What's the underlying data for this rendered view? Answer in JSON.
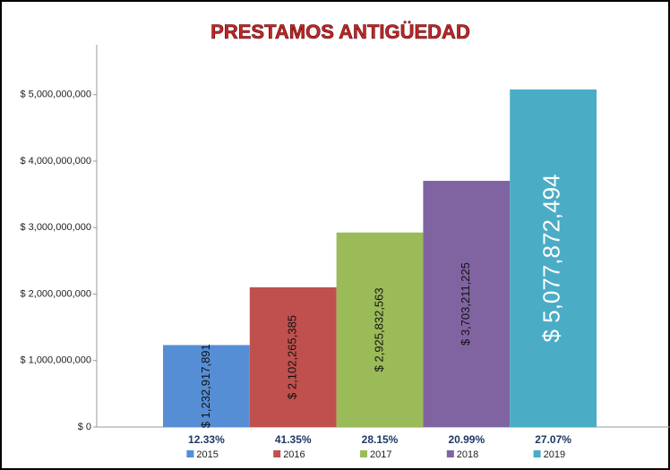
{
  "chart_data": {
    "type": "bar",
    "title": "PRESTAMOS ANTIGÜEDAD",
    "categories": [
      "2015",
      "2016",
      "2017",
      "2018",
      "2019"
    ],
    "values": [
      1232917891,
      2102265385,
      2925832563,
      3703211225,
      5077872494
    ],
    "value_labels": [
      "$ 1,232,917,891",
      "$ 2,102,265,385",
      "$ 2,925,832,563",
      "$ 3,703,211,225",
      "$ 5,077,872,494"
    ],
    "percentages": [
      "12.33%",
      "41.35%",
      "28.15%",
      "20.99%",
      "27.07%"
    ],
    "colors": [
      "#558ed5",
      "#c0504d",
      "#9bbb59",
      "#8064a2",
      "#4bacc6"
    ],
    "ylim": [
      0,
      5750000000
    ],
    "yticks": [
      {
        "value": 0,
        "label": "$ 0"
      },
      {
        "value": 1000000000,
        "label": "$ 1,000,000,000"
      },
      {
        "value": 2000000000,
        "label": "$ 2,000,000,000"
      },
      {
        "value": 3000000000,
        "label": "$ 3,000,000,000"
      },
      {
        "value": 4000000000,
        "label": "$ 4,000,000,000"
      },
      {
        "value": 5000000000,
        "label": "$ 5,000,000,000"
      }
    ],
    "grid": false
  }
}
